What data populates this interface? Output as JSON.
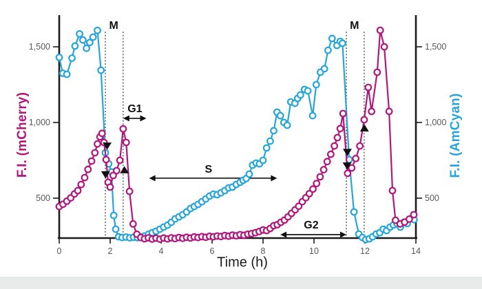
{
  "colors": {
    "mcherry": "#b0167e",
    "amcyan": "#26a5da",
    "axis": "#1a1a1a",
    "tick_label": "#57585a",
    "annotation": "#111111",
    "background": "#ffffff",
    "footer_band": "#e9eaea"
  },
  "chart_data": {
    "type": "line",
    "title": "",
    "xlabel": "Time (h)",
    "ylabel_left": "F.I. (mCherry)",
    "ylabel_right": "F.I. (AmCyan)",
    "xlim": [
      0,
      14
    ],
    "ylim": [
      236,
      1709
    ],
    "grid": false,
    "legend_position": "none",
    "x_ticks": [
      0,
      2,
      4,
      6,
      8,
      10,
      12,
      14
    ],
    "y_ticks": [
      {
        "value": 500,
        "label": "500"
      },
      {
        "value": 1000,
        "label": "1,000"
      },
      {
        "value": 1500,
        "label": "1,500"
      }
    ],
    "series": [
      {
        "name": "AmCyan",
        "axis": "right",
        "color_key": "amcyan",
        "marker": "open-circle",
        "points": [
          [
            0,
            1430
          ],
          [
            0.14,
            1325
          ],
          [
            0.3,
            1318
          ],
          [
            0.5,
            1425
          ],
          [
            0.62,
            1505
          ],
          [
            0.8,
            1585
          ],
          [
            0.93,
            1545
          ],
          [
            1.07,
            1490
          ],
          [
            1.2,
            1528
          ],
          [
            1.33,
            1564
          ],
          [
            1.5,
            1608
          ],
          [
            1.64,
            1345
          ],
          [
            1.81,
            800
          ],
          [
            1.94,
            727
          ],
          [
            2.05,
            673
          ],
          [
            2.14,
            386
          ],
          [
            2.22,
            295
          ],
          [
            2.33,
            245
          ],
          [
            2.47,
            240
          ],
          [
            2.62,
            243
          ],
          [
            2.77,
            238
          ],
          [
            2.92,
            242
          ],
          [
            3.07,
            239
          ],
          [
            3.22,
            244
          ],
          [
            3.35,
            250
          ],
          [
            3.5,
            262
          ],
          [
            3.65,
            272
          ],
          [
            3.8,
            282
          ],
          [
            3.95,
            295
          ],
          [
            4.1,
            309
          ],
          [
            4.25,
            322
          ],
          [
            4.4,
            341
          ],
          [
            4.55,
            363
          ],
          [
            4.7,
            377
          ],
          [
            4.85,
            391
          ],
          [
            5,
            409
          ],
          [
            5.15,
            432
          ],
          [
            5.3,
            445
          ],
          [
            5.45,
            459
          ],
          [
            5.6,
            477
          ],
          [
            5.75,
            495
          ],
          [
            5.9,
            514
          ],
          [
            6.05,
            527
          ],
          [
            6.2,
            523
          ],
          [
            6.35,
            536
          ],
          [
            6.5,
            550
          ],
          [
            6.65,
            568
          ],
          [
            6.8,
            573
          ],
          [
            6.95,
            591
          ],
          [
            7.1,
            605
          ],
          [
            7.22,
            618
          ],
          [
            7.34,
            630
          ],
          [
            7.46,
            659
          ],
          [
            7.59,
            718
          ],
          [
            7.73,
            732
          ],
          [
            7.86,
            727
          ],
          [
            8,
            750
          ],
          [
            8.14,
            832
          ],
          [
            8.28,
            877
          ],
          [
            8.42,
            946
          ],
          [
            8.55,
            1068
          ],
          [
            8.68,
            1045
          ],
          [
            8.82,
            1000
          ],
          [
            8.95,
            982
          ],
          [
            9.09,
            1136
          ],
          [
            9.25,
            1127
          ],
          [
            9.36,
            1159
          ],
          [
            9.47,
            1182
          ],
          [
            9.63,
            1218
          ],
          [
            9.76,
            1209
          ],
          [
            9.95,
            1045
          ],
          [
            10.09,
            1250
          ],
          [
            10.25,
            1332
          ],
          [
            10.41,
            1355
          ],
          [
            10.55,
            1477
          ],
          [
            10.71,
            1555
          ],
          [
            10.9,
            1509
          ],
          [
            11.03,
            1536
          ],
          [
            11.12,
            1523
          ],
          [
            11.38,
            755
          ],
          [
            11.57,
            409
          ],
          [
            11.76,
            263
          ],
          [
            11.9,
            240
          ],
          [
            12.03,
            227
          ],
          [
            12.17,
            232
          ],
          [
            12.3,
            245
          ],
          [
            12.44,
            263
          ],
          [
            12.58,
            272
          ],
          [
            12.72,
            295
          ],
          [
            12.85,
            286
          ],
          [
            12.99,
            309
          ],
          [
            13.12,
            323
          ],
          [
            13.26,
            332
          ],
          [
            13.39,
            309
          ],
          [
            13.53,
            341
          ],
          [
            13.66,
            332
          ],
          [
            13.8,
            364
          ],
          [
            13.93,
            358
          ]
        ]
      },
      {
        "name": "mCherry",
        "axis": "left",
        "color_key": "mcherry",
        "marker": "open-circle",
        "points": [
          [
            0,
            445
          ],
          [
            0.15,
            460
          ],
          [
            0.3,
            480
          ],
          [
            0.45,
            502
          ],
          [
            0.6,
            528
          ],
          [
            0.73,
            550
          ],
          [
            0.86,
            590
          ],
          [
            1,
            636
          ],
          [
            1.13,
            690
          ],
          [
            1.27,
            745
          ],
          [
            1.4,
            800
          ],
          [
            1.5,
            858
          ],
          [
            1.6,
            905
          ],
          [
            1.68,
            928
          ],
          [
            1.76,
            868
          ],
          [
            1.84,
            755
          ],
          [
            1.92,
            605
          ],
          [
            2,
            573
          ],
          [
            2.12,
            650
          ],
          [
            2.25,
            682
          ],
          [
            2.38,
            750
          ],
          [
            2.51,
            958
          ],
          [
            2.63,
            868
          ],
          [
            2.76,
            545
          ],
          [
            2.9,
            330
          ],
          [
            3.05,
            262
          ],
          [
            3.2,
            240
          ],
          [
            3.35,
            232
          ],
          [
            3.5,
            238
          ],
          [
            3.65,
            230
          ],
          [
            3.8,
            236
          ],
          [
            3.95,
            229
          ],
          [
            4.1,
            237
          ],
          [
            4.25,
            231
          ],
          [
            4.4,
            238
          ],
          [
            4.55,
            233
          ],
          [
            4.7,
            240
          ],
          [
            4.85,
            235
          ],
          [
            5,
            242
          ],
          [
            5.15,
            237
          ],
          [
            5.3,
            244
          ],
          [
            5.45,
            240
          ],
          [
            5.6,
            246
          ],
          [
            5.75,
            242
          ],
          [
            5.9,
            248
          ],
          [
            6.05,
            245
          ],
          [
            6.2,
            250
          ],
          [
            6.35,
            247
          ],
          [
            6.5,
            253
          ],
          [
            6.65,
            249
          ],
          [
            6.8,
            256
          ],
          [
            6.95,
            252
          ],
          [
            7.1,
            259
          ],
          [
            7.25,
            255
          ],
          [
            7.4,
            262
          ],
          [
            7.55,
            266
          ],
          [
            7.7,
            272
          ],
          [
            7.85,
            280
          ],
          [
            8,
            290
          ],
          [
            8.14,
            286
          ],
          [
            8.28,
            300
          ],
          [
            8.42,
            318
          ],
          [
            8.56,
            325
          ],
          [
            8.7,
            341
          ],
          [
            8.84,
            355
          ],
          [
            8.98,
            377
          ],
          [
            9.12,
            400
          ],
          [
            9.26,
            423
          ],
          [
            9.4,
            447
          ],
          [
            9.54,
            477
          ],
          [
            9.68,
            503
          ],
          [
            9.82,
            530
          ],
          [
            9.96,
            560
          ],
          [
            10.1,
            597
          ],
          [
            10.24,
            641
          ],
          [
            10.38,
            688
          ],
          [
            10.52,
            742
          ],
          [
            10.66,
            790
          ],
          [
            10.8,
            845
          ],
          [
            10.92,
            900
          ],
          [
            11.03,
            960
          ],
          [
            11.14,
            1059
          ],
          [
            11.32,
            664
          ],
          [
            11.48,
            700
          ],
          [
            11.64,
            762
          ],
          [
            11.8,
            845
          ],
          [
            11.97,
            1018
          ],
          [
            12.13,
            1232
          ],
          [
            12.26,
            1073
          ],
          [
            12.48,
            1332
          ],
          [
            12.6,
            1609
          ],
          [
            12.76,
            1500
          ],
          [
            12.95,
            1073
          ],
          [
            13.08,
            550
          ],
          [
            13.2,
            354
          ],
          [
            13.38,
            330
          ],
          [
            13.56,
            342
          ],
          [
            13.74,
            362
          ],
          [
            13.92,
            391
          ]
        ]
      }
    ],
    "cell_cycle_phases": {
      "dash_top_value": 1600,
      "span_label_value": 1618,
      "m_spans": [
        {
          "label": "M",
          "t1": 1.81,
          "t2": 2.51,
          "label_t": 2.14
        },
        {
          "label": "M",
          "t1": 11.27,
          "t2": 11.97,
          "label_t": 11.59
        }
      ],
      "arrows": [
        {
          "label": "G1",
          "t1": 2.51,
          "t2": 3.42,
          "v": 1027,
          "label_t": 2.97,
          "label_v": 1068
        },
        {
          "label": "S",
          "t1": 3.53,
          "t2": 8.55,
          "v": 632,
          "label_t": 5.86,
          "label_v": 668
        },
        {
          "label": "G2",
          "t1": 8.68,
          "t2": 11.27,
          "v": 259,
          "label_t": 9.89,
          "label_v": 300
        }
      ],
      "event_markers": [
        {
          "shape": "triangle-down",
          "t": 1.88,
          "v": 820
        },
        {
          "shape": "triangle-down",
          "t": 1.82,
          "v": 630
        },
        {
          "shape": "triangle-up",
          "t": 2.56,
          "v": 712
        },
        {
          "shape": "triangle-down",
          "t": 11.31,
          "v": 778
        },
        {
          "shape": "triangle-down",
          "t": 11.3,
          "v": 688
        },
        {
          "shape": "triangle-up",
          "t": 11.98,
          "v": 988
        }
      ]
    }
  }
}
